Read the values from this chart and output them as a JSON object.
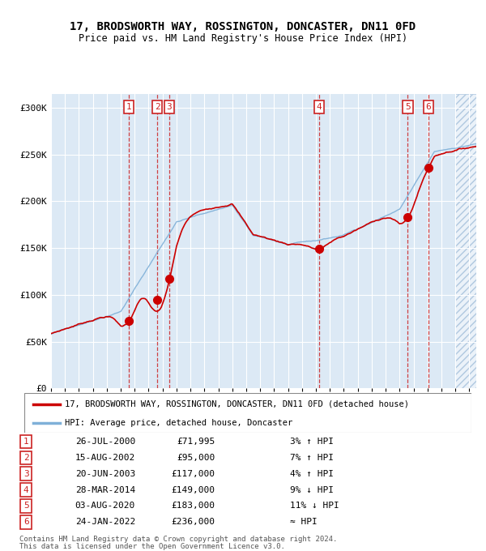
{
  "title1": "17, BRODSWORTH WAY, ROSSINGTON, DONCASTER, DN11 0FD",
  "title2": "Price paid vs. HM Land Registry's House Price Index (HPI)",
  "ytick_vals": [
    0,
    50000,
    100000,
    150000,
    200000,
    250000,
    300000
  ],
  "ytick_labels": [
    "£0",
    "£50K",
    "£100K",
    "£150K",
    "£200K",
    "£250K",
    "£300K"
  ],
  "ylim": [
    0,
    315000
  ],
  "xlim_start": 1995.0,
  "xlim_end": 2025.5,
  "bg_color": "#dce9f5",
  "hatch_color": "#b0c8e0",
  "purchases": [
    {
      "num": 1,
      "date_label": "26-JUL-2000",
      "date_x": 2000.57,
      "price": 71995,
      "pct": "3%",
      "dir": "↑",
      "label": "£71,995"
    },
    {
      "num": 2,
      "date_label": "15-AUG-2002",
      "date_x": 2002.62,
      "price": 95000,
      "pct": "7%",
      "dir": "↑",
      "label": "£95,000"
    },
    {
      "num": 3,
      "date_label": "20-JUN-2003",
      "date_x": 2003.47,
      "price": 117000,
      "pct": "4%",
      "dir": "↑",
      "label": "£117,000"
    },
    {
      "num": 4,
      "date_label": "28-MAR-2014",
      "date_x": 2014.24,
      "price": 149000,
      "pct": "9%",
      "dir": "↓",
      "label": "£149,000"
    },
    {
      "num": 5,
      "date_label": "03-AUG-2020",
      "date_x": 2020.59,
      "price": 183000,
      "pct": "11%",
      "dir": "↓",
      "label": "£183,000"
    },
    {
      "num": 6,
      "date_label": "24-JAN-2022",
      "date_x": 2022.07,
      "price": 236000,
      "pct": "≈",
      "dir": "",
      "label": "£236,000"
    }
  ],
  "legend_line1": "17, BRODSWORTH WAY, ROSSINGTON, DONCASTER, DN11 0FD (detached house)",
  "legend_line2": "HPI: Average price, detached house, Doncaster",
  "footer1": "Contains HM Land Registry data © Crown copyright and database right 2024.",
  "footer2": "This data is licensed under the Open Government Licence v3.0.",
  "red_line_color": "#cc0000",
  "blue_line_color": "#7fb0d8",
  "dot_color": "#cc0000"
}
